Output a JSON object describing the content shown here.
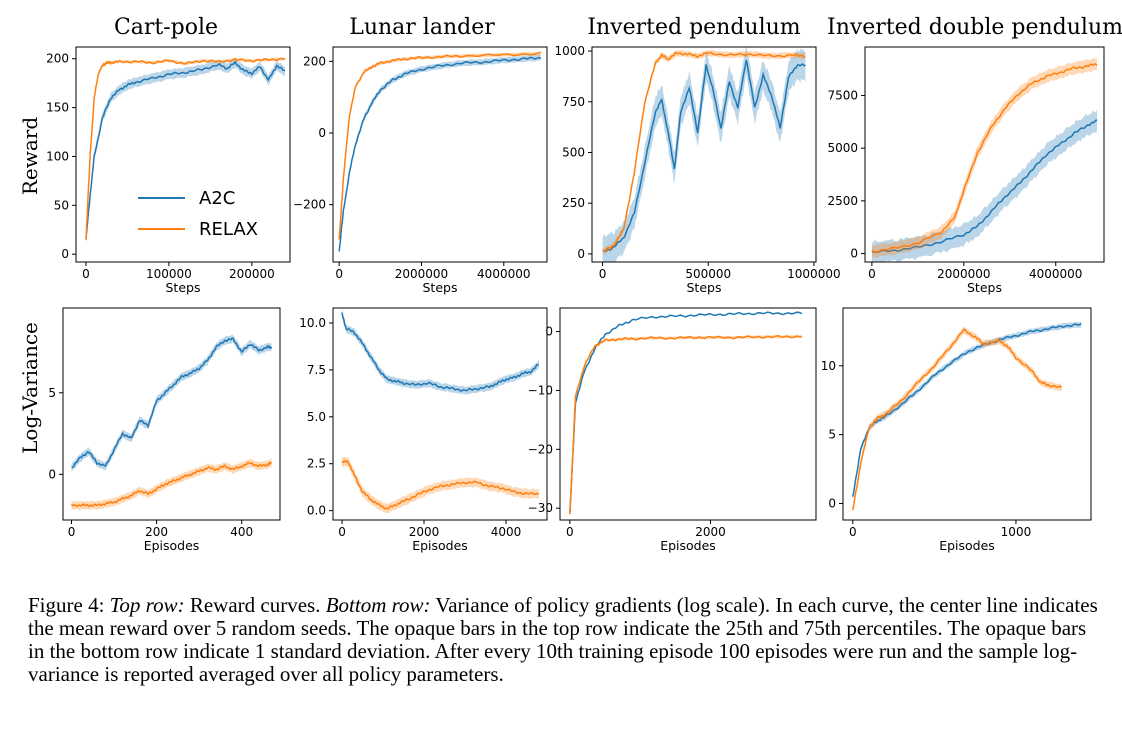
{
  "caption": {
    "label": "Figure 4:",
    "top_row_label": "Top row:",
    "top_row_text": "Reward curves.",
    "bottom_row_label": "Bottom row:",
    "rest": "Variance of policy gradients (log scale). In each curve, the center line indicates the mean reward over 5 random seeds. The opaque bars in the top row indicate the 25th and 75th percentiles. The opaque bars in the bottom row indicate 1 standard deviation. After every 10th training episode 100 episodes were run and the sample log-variance is reported averaged over all policy parameters."
  },
  "colors": {
    "A2C": "#1f77b4",
    "RELAX": "#ff7f0e"
  },
  "row_labels": {
    "top": "Reward",
    "bottom": "Log-Variance"
  },
  "legend": {
    "entries": [
      "A2C",
      "RELAX"
    ],
    "placement": "lower-right of Cart-pole reward panel"
  },
  "chart_data": [
    {
      "id": "cartpole_reward",
      "type": "line",
      "title": "Cart-pole",
      "xlabel": "Steps",
      "ylabel": "Reward",
      "xlim": [
        -12000,
        246000
      ],
      "ylim": [
        -8,
        212
      ],
      "xticks": [
        0,
        100000,
        200000
      ],
      "xtick_labels": [
        "0",
        "100000",
        "200000"
      ],
      "yticks": [
        0,
        50,
        100,
        150,
        200
      ],
      "ytick_labels": [
        "0",
        "50",
        "100",
        "150",
        "200"
      ],
      "series": [
        {
          "name": "A2C",
          "band": 6,
          "x": [
            0,
            5000,
            10000,
            20000,
            30000,
            40000,
            50000,
            60000,
            80000,
            100000,
            120000,
            140000,
            160000,
            170000,
            180000,
            190000,
            200000,
            210000,
            220000,
            230000,
            240000
          ],
          "y": [
            15,
            60,
            100,
            140,
            160,
            168,
            173,
            176,
            180,
            184,
            186,
            189,
            194,
            190,
            196,
            188,
            185,
            192,
            178,
            193,
            187
          ]
        },
        {
          "name": "RELAX",
          "band": 2,
          "x": [
            0,
            5000,
            10000,
            15000,
            20000,
            25000,
            30000,
            40000,
            60000,
            80000,
            100000,
            120000,
            140000,
            160000,
            180000,
            200000,
            220000,
            240000
          ],
          "y": [
            15,
            100,
            160,
            185,
            193,
            196,
            196,
            197,
            197,
            196,
            198,
            195,
            198,
            197,
            199,
            198,
            199,
            200
          ]
        }
      ]
    },
    {
      "id": "lunar_reward",
      "type": "line",
      "title": "Lunar lander",
      "xlabel": "Steps",
      "ylabel": "",
      "xlim": [
        -150000,
        5050000
      ],
      "ylim": [
        -360,
        240
      ],
      "xticks": [
        0,
        2000000,
        4000000
      ],
      "xtick_labels": [
        "0",
        "2000000",
        "4000000"
      ],
      "yticks": [
        -200,
        0,
        200
      ],
      "ytick_labels": [
        "−200",
        "0",
        "200"
      ],
      "series": [
        {
          "name": "A2C",
          "band": 10,
          "x": [
            0,
            100000,
            250000,
            400000,
            600000,
            800000,
            1000000,
            1300000,
            1600000,
            2000000,
            2500000,
            3000000,
            3500000,
            4000000,
            4500000,
            4900000
          ],
          "y": [
            -330,
            -220,
            -110,
            -30,
            40,
            85,
            120,
            148,
            165,
            178,
            188,
            195,
            198,
            203,
            207,
            210
          ]
        },
        {
          "name": "RELAX",
          "band": 6,
          "x": [
            0,
            100000,
            250000,
            400000,
            600000,
            800000,
            1000000,
            1300000,
            1600000,
            2000000,
            2500000,
            3000000,
            4000000,
            4900000
          ],
          "y": [
            -300,
            -130,
            50,
            130,
            170,
            185,
            195,
            202,
            207,
            210,
            213,
            215,
            218,
            222
          ]
        }
      ]
    },
    {
      "id": "invpend_reward",
      "type": "line",
      "title": "Inverted pendulum",
      "xlabel": "Steps",
      "ylabel": "",
      "xlim": [
        -50000,
        1010000
      ],
      "ylim": [
        -40,
        1020
      ],
      "xticks": [
        0,
        500000,
        1000000
      ],
      "xtick_labels": [
        "0",
        "500000",
        "1000000"
      ],
      "yticks": [
        0,
        250,
        500,
        750,
        1000
      ],
      "ytick_labels": [
        "0",
        "250",
        "500",
        "750",
        "1000"
      ],
      "series": [
        {
          "name": "A2C",
          "band": 90,
          "x": [
            0,
            50000,
            100000,
            150000,
            200000,
            250000,
            280000,
            310000,
            340000,
            370000,
            410000,
            450000,
            490000,
            520000,
            560000,
            600000,
            640000,
            680000,
            720000,
            760000,
            800000,
            840000,
            880000,
            920000,
            960000
          ],
          "y": [
            10,
            30,
            80,
            200,
            450,
            700,
            760,
            600,
            420,
            700,
            820,
            600,
            930,
            820,
            620,
            850,
            720,
            960,
            720,
            880,
            780,
            620,
            870,
            930,
            930
          ]
        },
        {
          "name": "RELAX",
          "band": 18,
          "x": [
            0,
            50000,
            100000,
            150000,
            200000,
            250000,
            280000,
            310000,
            350000,
            400000,
            450000,
            500000,
            600000,
            700000,
            800000,
            900000,
            960000
          ],
          "y": [
            10,
            40,
            120,
            400,
            750,
            940,
            980,
            960,
            990,
            985,
            975,
            990,
            980,
            985,
            975,
            980,
            975
          ]
        }
      ]
    },
    {
      "id": "invdpend_reward",
      "type": "line",
      "title": "Inverted double pendulum",
      "xlabel": "Steps",
      "ylabel": "",
      "xlim": [
        -150000,
        5050000
      ],
      "ylim": [
        -400,
        9800
      ],
      "xticks": [
        0,
        2000000,
        4000000
      ],
      "xtick_labels": [
        "0",
        "2000000",
        "4000000"
      ],
      "yticks": [
        0,
        2500,
        5000,
        7500
      ],
      "ytick_labels": [
        "0",
        "2500",
        "5000",
        "7500"
      ],
      "series": [
        {
          "name": "A2C",
          "band": 600,
          "x": [
            0,
            500000,
            1000000,
            1500000,
            2000000,
            2300000,
            2600000,
            2900000,
            3200000,
            3500000,
            3800000,
            4100000,
            4400000,
            4700000,
            4900000
          ],
          "y": [
            50,
            150,
            300,
            550,
            900,
            1300,
            2000,
            2700,
            3300,
            4000,
            4700,
            5200,
            5700,
            6100,
            6300
          ]
        },
        {
          "name": "RELAX",
          "band": 350,
          "x": [
            0,
            500000,
            1000000,
            1500000,
            1800000,
            2000000,
            2300000,
            2600000,
            2900000,
            3200000,
            3500000,
            3800000,
            4100000,
            4400000,
            4700000,
            4900000
          ],
          "y": [
            100,
            250,
            500,
            1000,
            1700,
            3000,
            4800,
            6000,
            6900,
            7600,
            8100,
            8400,
            8600,
            8800,
            8900,
            9000
          ]
        }
      ]
    },
    {
      "id": "cartpole_var",
      "type": "line",
      "title": "",
      "xlabel": "Episodes",
      "ylabel": "Log-Variance",
      "xlim": [
        -20,
        490
      ],
      "ylim": [
        -2.8,
        10.2
      ],
      "xticks": [
        0,
        200,
        400
      ],
      "xtick_labels": [
        "0",
        "200",
        "400"
      ],
      "yticks": [
        0,
        5
      ],
      "ytick_labels": [
        "0",
        "5"
      ],
      "series": [
        {
          "name": "A2C",
          "band": 0.3,
          "x": [
            0,
            20,
            40,
            60,
            80,
            100,
            120,
            140,
            160,
            180,
            200,
            220,
            240,
            260,
            280,
            300,
            320,
            340,
            360,
            380,
            400,
            420,
            440,
            460,
            470
          ],
          "y": [
            0.4,
            1.0,
            1.4,
            0.7,
            0.5,
            1.5,
            2.5,
            2.2,
            3.3,
            3.0,
            4.5,
            5.0,
            5.5,
            6.0,
            6.2,
            6.5,
            7.0,
            7.8,
            8.2,
            8.3,
            7.5,
            8.0,
            7.6,
            7.8,
            7.8
          ]
        },
        {
          "name": "RELAX",
          "band": 0.3,
          "x": [
            0,
            20,
            40,
            60,
            80,
            100,
            120,
            140,
            160,
            180,
            200,
            220,
            240,
            260,
            280,
            300,
            320,
            340,
            360,
            380,
            400,
            420,
            440,
            460,
            470
          ],
          "y": [
            -1.9,
            -1.9,
            -1.9,
            -1.9,
            -1.8,
            -1.7,
            -1.5,
            -1.3,
            -1.0,
            -1.2,
            -0.9,
            -0.6,
            -0.4,
            -0.2,
            0.0,
            0.2,
            0.4,
            0.3,
            0.5,
            0.3,
            0.5,
            0.7,
            0.5,
            0.6,
            0.7
          ]
        }
      ]
    },
    {
      "id": "lunar_var",
      "type": "line",
      "title": "",
      "xlabel": "Episodes",
      "ylabel": "",
      "xlim": [
        -220,
        5000
      ],
      "ylim": [
        -0.5,
        10.8
      ],
      "xticks": [
        0,
        2000,
        4000
      ],
      "xtick_labels": [
        "0",
        "2000",
        "4000"
      ],
      "yticks": [
        0,
        2.5,
        5,
        7.5,
        10
      ],
      "ytick_labels": [
        "0.0",
        "2.5",
        "5.0",
        "7.5",
        "10.0"
      ],
      "series": [
        {
          "name": "A2C",
          "band": 0.25,
          "x": [
            0,
            100,
            300,
            500,
            700,
            900,
            1100,
            1300,
            1500,
            1800,
            2100,
            2400,
            2700,
            3000,
            3300,
            3600,
            3800,
            4000,
            4200,
            4400,
            4600,
            4800
          ],
          "y": [
            10.5,
            9.7,
            9.5,
            8.9,
            8.2,
            7.5,
            7.0,
            6.9,
            6.8,
            6.7,
            6.8,
            6.6,
            6.5,
            6.4,
            6.5,
            6.6,
            6.8,
            7.0,
            7.1,
            7.3,
            7.4,
            7.8
          ]
        },
        {
          "name": "RELAX",
          "band": 0.3,
          "x": [
            0,
            150,
            300,
            500,
            700,
            900,
            1100,
            1300,
            1500,
            1800,
            2100,
            2400,
            2700,
            3000,
            3300,
            3600,
            3900,
            4200,
            4500,
            4800
          ],
          "y": [
            2.6,
            2.6,
            1.9,
            1.0,
            0.6,
            0.3,
            0.1,
            0.3,
            0.5,
            0.8,
            1.1,
            1.3,
            1.4,
            1.5,
            1.5,
            1.3,
            1.2,
            1.0,
            0.9,
            0.9
          ]
        }
      ]
    },
    {
      "id": "invpend_var",
      "type": "line",
      "title": "",
      "xlabel": "Episodes",
      "ylabel": "",
      "xlim": [
        -140,
        3500
      ],
      "ylim": [
        -32,
        4
      ],
      "xticks": [
        0,
        2000
      ],
      "xtick_labels": [
        "0",
        "2000"
      ],
      "yticks": [
        -30,
        -20,
        -10,
        0
      ],
      "ytick_labels": [
        "−30",
        "−20",
        "−10",
        "0"
      ],
      "series": [
        {
          "name": "A2C",
          "band": 0,
          "x": [
            0,
            80,
            200,
            350,
            500,
            700,
            900,
            1200,
            1500,
            1800,
            2100,
            2400,
            2700,
            3000,
            3300
          ],
          "y": [
            -31,
            -12,
            -7,
            -3,
            -0.5,
            1,
            2,
            2.5,
            2.6,
            2.8,
            2.9,
            3.0,
            3.1,
            3.1,
            3.1
          ]
        },
        {
          "name": "RELAX",
          "band": 0.3,
          "x": [
            0,
            80,
            200,
            350,
            500,
            700,
            900,
            1200,
            1500,
            1800,
            2100,
            2400,
            2700,
            3000,
            3300
          ],
          "y": [
            -31,
            -11,
            -6,
            -2.5,
            -1.5,
            -1.3,
            -1.2,
            -1.1,
            -1.1,
            -1.0,
            -1.0,
            -1.0,
            -0.9,
            -0.9,
            -0.8
          ]
        }
      ]
    },
    {
      "id": "invdpend_var",
      "type": "line",
      "title": "",
      "xlabel": "Episodes",
      "ylabel": "",
      "xlim": [
        -60,
        1460
      ],
      "ylim": [
        -1.2,
        14.2
      ],
      "xticks": [
        0,
        1000
      ],
      "xtick_labels": [
        "0",
        "1000"
      ],
      "yticks": [
        0,
        5,
        10
      ],
      "ytick_labels": [
        "0",
        "5",
        "10"
      ],
      "series": [
        {
          "name": "A2C",
          "band": 0.25,
          "x": [
            0,
            50,
            100,
            150,
            200,
            300,
            400,
            500,
            600,
            700,
            800,
            900,
            1000,
            1100,
            1200,
            1300,
            1400
          ],
          "y": [
            0.5,
            4.0,
            5.5,
            6.0,
            6.3,
            7.2,
            8.2,
            9.3,
            10.2,
            11.0,
            11.5,
            11.9,
            12.2,
            12.5,
            12.7,
            12.9,
            13.0
          ]
        },
        {
          "name": "RELAX",
          "band": 0.3,
          "x": [
            0,
            50,
            100,
            150,
            200,
            300,
            400,
            500,
            600,
            680,
            750,
            800,
            900,
            950,
            1000,
            1100,
            1150,
            1200,
            1280
          ],
          "y": [
            -0.5,
            3.0,
            5.5,
            6.2,
            6.5,
            7.5,
            8.8,
            10.0,
            11.4,
            12.6,
            12.1,
            11.6,
            11.8,
            11.4,
            10.6,
            9.6,
            8.8,
            8.6,
            8.4
          ]
        }
      ]
    }
  ]
}
